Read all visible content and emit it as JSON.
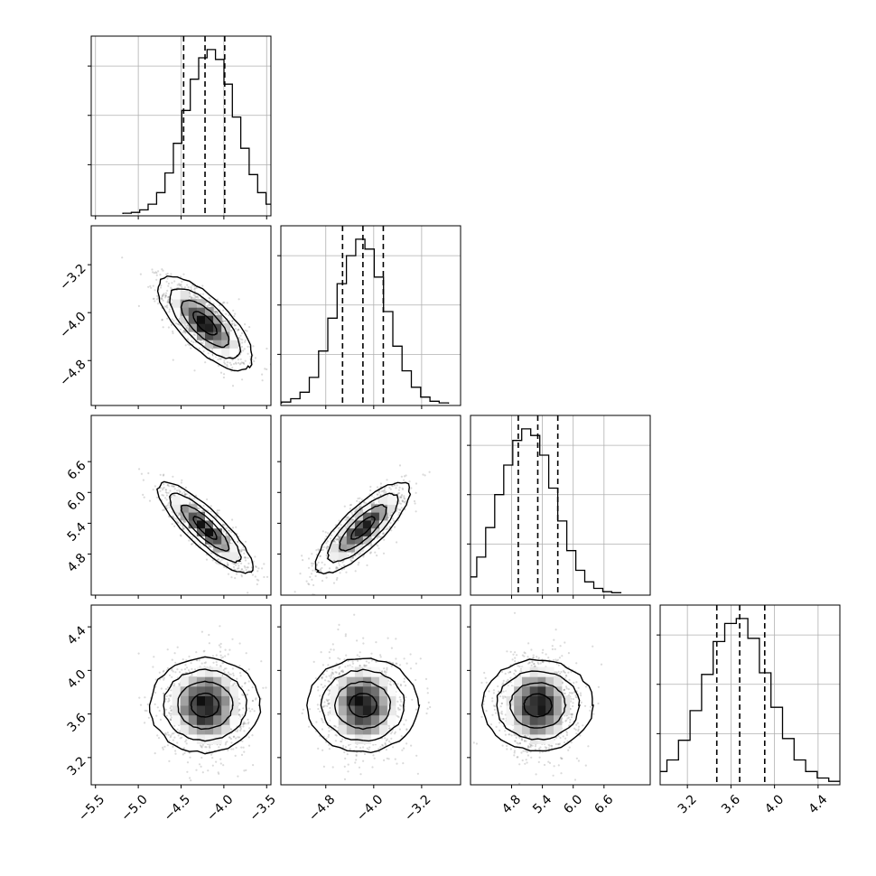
{
  "chart_data": {
    "type": "corner",
    "title": "",
    "params": [
      {
        "xlim": [
          -5.55,
          -3.45
        ],
        "ticks": [
          -5.5,
          -5.0,
          -4.5,
          -4.0,
          -3.5
        ],
        "tick_labels": [
          "−5.5",
          "−5.0",
          "−4.5",
          "−4.0",
          "−3.5"
        ],
        "median": -4.22,
        "q16": -4.47,
        "q84": -3.99
      },
      {
        "xlim": [
          -5.55,
          -2.55
        ],
        "ticks": [
          -4.8,
          -4.0,
          -3.2
        ],
        "tick_labels": [
          "−4.8",
          "−4.0",
          "−3.2"
        ],
        "median": -4.18,
        "q16": -4.52,
        "q84": -3.84
      },
      {
        "xlim": [
          4.0,
          7.5
        ],
        "ticks": [
          4.8,
          5.4,
          6.0,
          6.6
        ],
        "tick_labels": [
          "4.8",
          "5.4",
          "6.0",
          "6.6"
        ],
        "median": 5.31,
        "q16": 4.93,
        "q84": 5.7
      },
      {
        "xlim": [
          2.95,
          4.6
        ],
        "ticks": [
          3.2,
          3.6,
          4.0,
          4.4
        ],
        "tick_labels": [
          "3.2",
          "3.6",
          "4.0",
          "4.4"
        ],
        "median": 3.68,
        "q16": 3.47,
        "q84": 3.91
      }
    ],
    "histograms": [
      [
        0.005,
        0.01,
        0.025,
        0.06,
        0.13,
        0.25,
        0.43,
        0.63,
        0.82,
        0.95,
        1.0,
        0.94,
        0.79,
        0.59,
        0.4,
        0.24,
        0.13,
        0.06,
        0.025,
        0.01
      ],
      [
        0.01,
        0.03,
        0.07,
        0.16,
        0.32,
        0.52,
        0.73,
        0.9,
        1.0,
        0.94,
        0.77,
        0.56,
        0.35,
        0.2,
        0.1,
        0.04,
        0.015,
        0.005
      ],
      [
        0.03,
        0.1,
        0.22,
        0.4,
        0.6,
        0.78,
        0.93,
        1.0,
        0.96,
        0.84,
        0.64,
        0.44,
        0.26,
        0.14,
        0.07,
        0.03,
        0.01,
        0.004
      ],
      [
        0.02,
        0.07,
        0.14,
        0.26,
        0.44,
        0.66,
        0.86,
        0.97,
        1.0,
        0.88,
        0.67,
        0.46,
        0.27,
        0.14,
        0.07,
        0.03,
        0.01
      ]
    ],
    "correlations": [
      {
        "row": 1,
        "col": 0,
        "rho": -0.72
      },
      {
        "row": 2,
        "col": 0,
        "rho": -0.85
      },
      {
        "row": 2,
        "col": 1,
        "rho": 0.8
      },
      {
        "row": 3,
        "col": 0,
        "rho": 0.0
      },
      {
        "row": 3,
        "col": 1,
        "rho": 0.0
      },
      {
        "row": 3,
        "col": 2,
        "rho": 0.0
      }
    ],
    "contour_levels": [
      "0.5-sigma",
      "1-sigma",
      "1.5-sigma",
      "2-sigma"
    ],
    "grid": true,
    "colors": {
      "hist": "#000000",
      "quantile_line": "#000000",
      "grid": "#b0b0b0",
      "points": "#7a7a7a",
      "density": "#000000"
    }
  }
}
